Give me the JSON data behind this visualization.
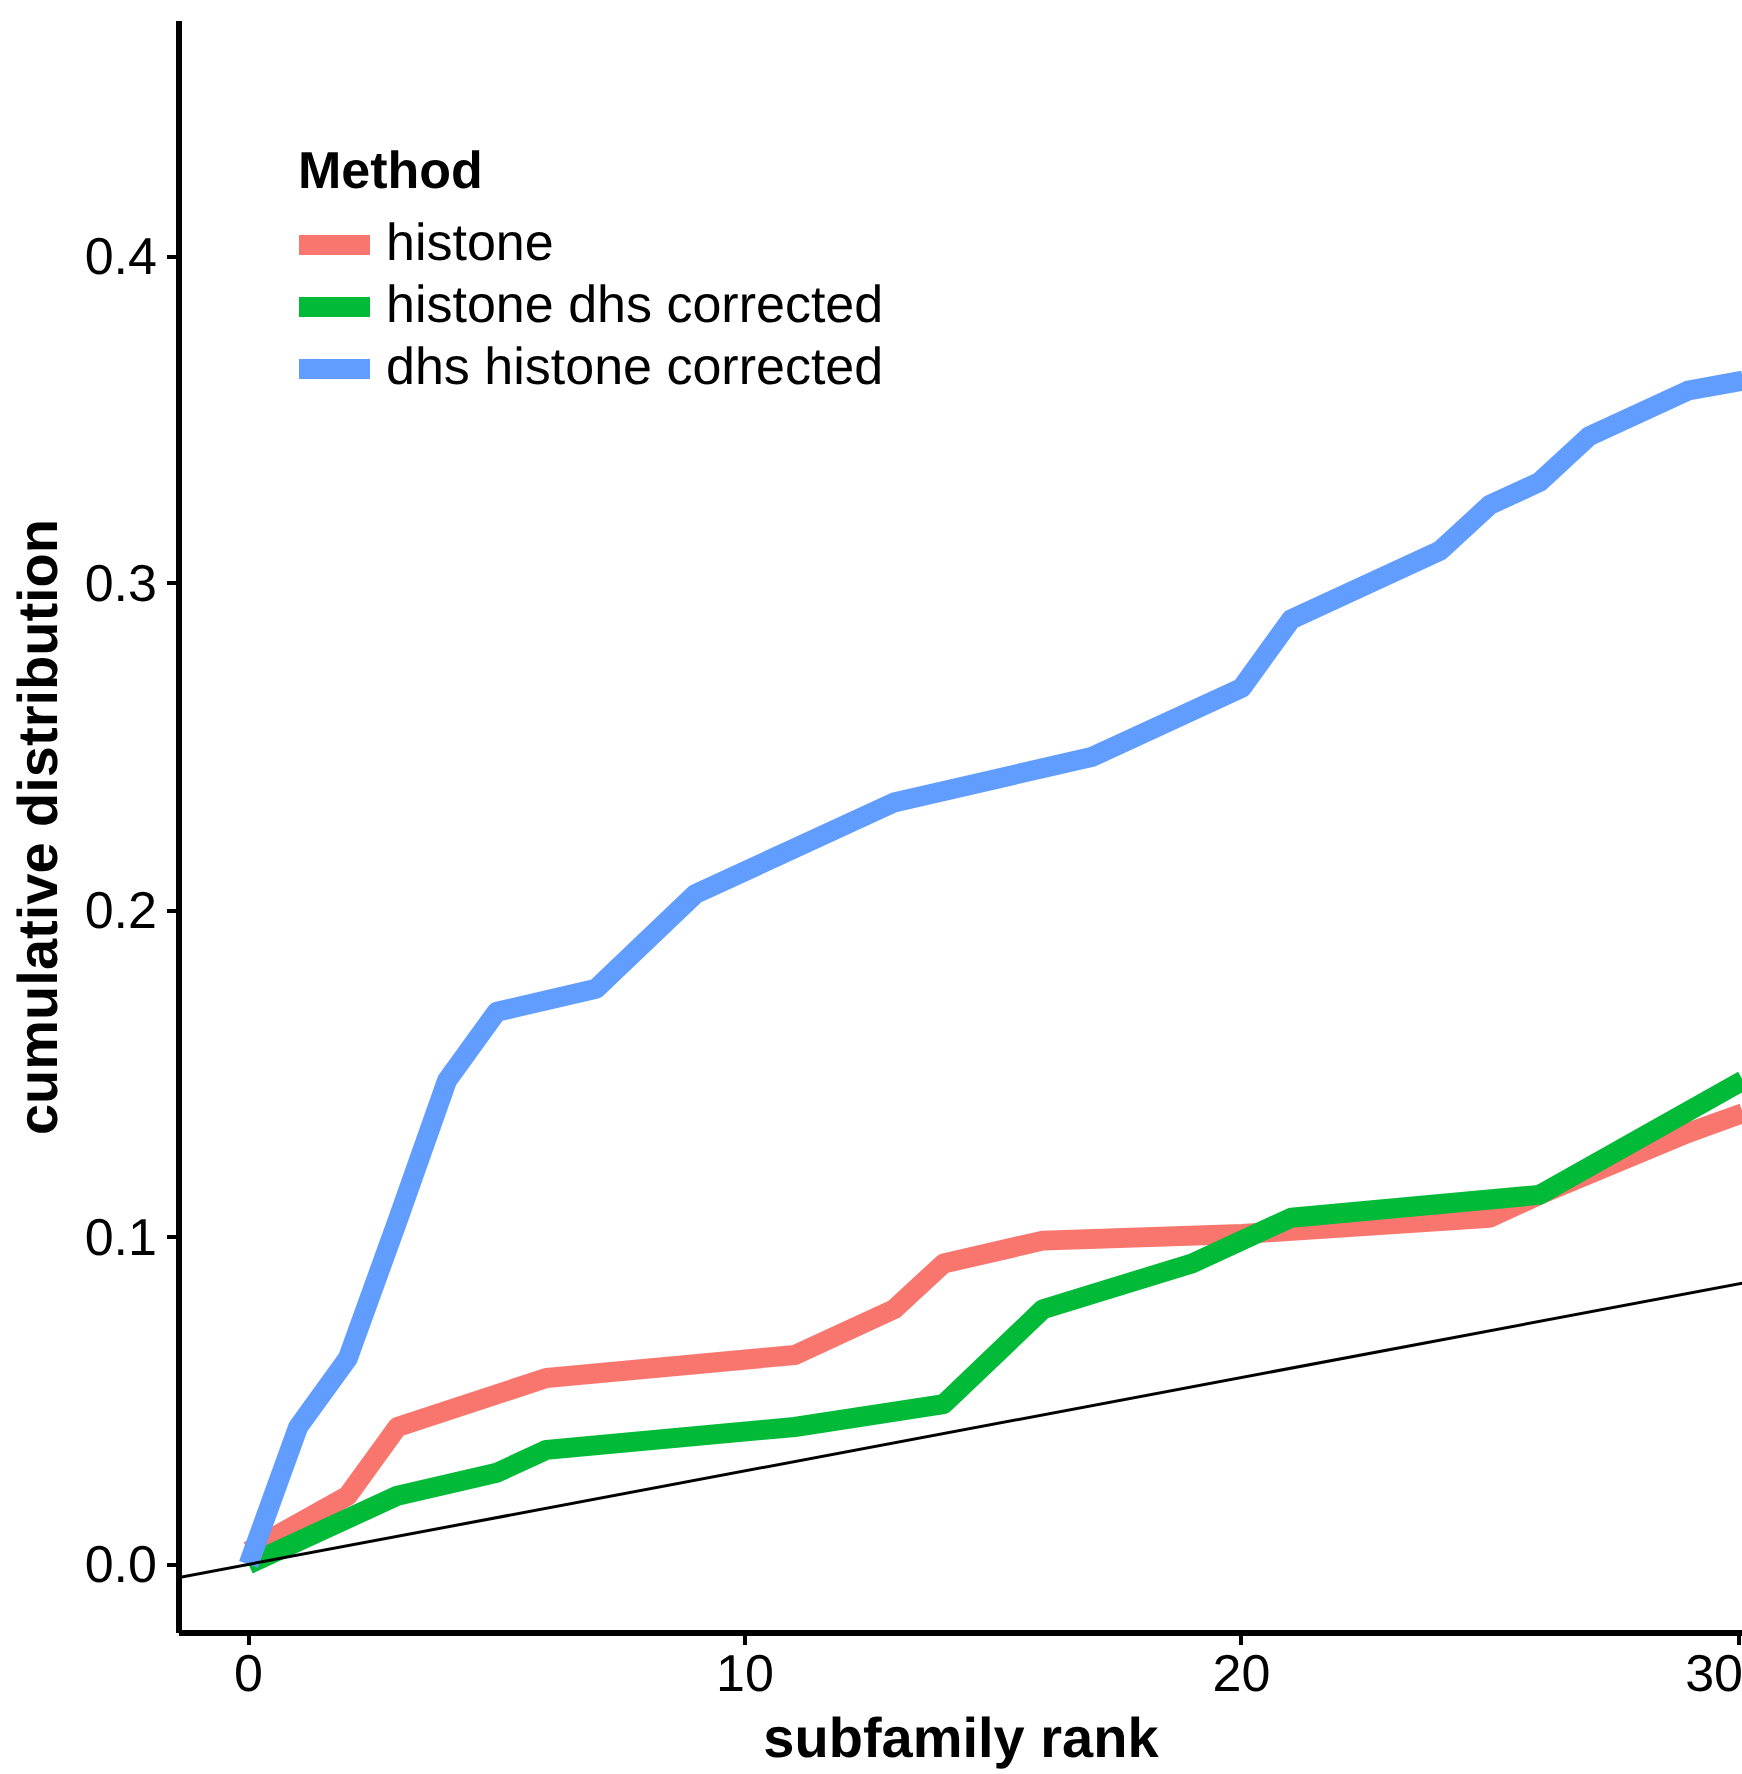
{
  "chart_data": {
    "type": "line",
    "xlabel": "subfamily rank",
    "ylabel": "cumulative distribution",
    "legend_title": "Method",
    "xlim": [
      -1.4,
      30.1
    ],
    "ylim": [
      -0.021,
      0.472
    ],
    "xticks": [
      0,
      10,
      20,
      30
    ],
    "yticks": [
      {
        "value": 0,
        "label": "0.0"
      },
      0.1,
      0.2,
      0.3,
      0.4
    ],
    "grid": false,
    "legend": "top left",
    "line_style": "solid",
    "series": [
      {
        "name": "histone",
        "color": "#f8766d",
        "x": [
          0,
          2,
          3,
          6,
          11,
          13,
          14,
          16,
          20,
          25,
          26,
          29,
          30.1
        ],
        "values": [
          0.004,
          0.021,
          0.042,
          0.057,
          0.064,
          0.078,
          0.092,
          0.099,
          0.101,
          0.106,
          0.113,
          0.132,
          0.138
        ]
      },
      {
        "name": "histone dhs corrected",
        "color": "#00ba38",
        "x": [
          0,
          3,
          5,
          6,
          11,
          14,
          16,
          19,
          21,
          26,
          30.1
        ],
        "values": [
          0.0,
          0.021,
          0.028,
          0.035,
          0.042,
          0.049,
          0.078,
          0.092,
          0.106,
          0.113,
          0.148
        ]
      },
      {
        "name": "dhs histone corrected",
        "color": "#619cff",
        "x": [
          0,
          1,
          2,
          3,
          4,
          5,
          7,
          9,
          11,
          13,
          17,
          20,
          21,
          24,
          25,
          26,
          27,
          29,
          30.1
        ],
        "values": [
          0.0,
          0.042,
          0.063,
          0.105,
          0.148,
          0.169,
          0.176,
          0.205,
          0.219,
          0.233,
          0.247,
          0.268,
          0.289,
          0.31,
          0.324,
          0.331,
          0.345,
          0.359,
          0.362
        ]
      },
      {
        "color": "#000000",
        "x": [
          -1.4,
          30.1
        ],
        "values": [
          -0.004,
          0.086
        ]
      }
    ]
  }
}
